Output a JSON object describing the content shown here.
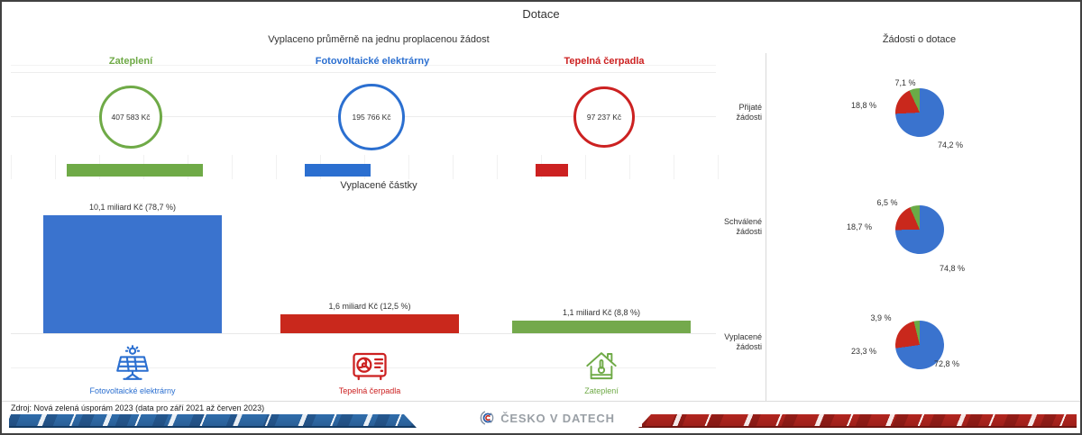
{
  "header": {
    "title": "Dotace"
  },
  "avg_chart": {
    "title": "Vyplaceno průměrně na jednu proplacenou žádost",
    "items": [
      {
        "label": "Zateplení",
        "value_text": "407 583 Kč",
        "value": 407583,
        "color": "#6FAA47"
      },
      {
        "label": "Fotovoltaické elektrárny",
        "value_text": "195 766 Kč",
        "value": 195766,
        "color": "#2B6FD0"
      },
      {
        "label": "Tepelná čerpadla",
        "value_text": "97 237 Kč",
        "value": 97237,
        "color": "#CC2121"
      }
    ]
  },
  "amounts_chart": {
    "title": "Vyplacené částky",
    "bars": [
      {
        "category": "Fotovoltaické elektrárny",
        "label": "10,1 miliard Kč (78,7 %)",
        "value": 10.1,
        "color": "#3A73CE"
      },
      {
        "category": "Tepelná čerpadla",
        "label": "1,6 miliard Kč (12,5 %)",
        "value": 1.6,
        "color": "#C9281C"
      },
      {
        "category": "Zateplení",
        "label": "1,1 miliard Kč (8,8 %)",
        "value": 1.1,
        "color": "#74A94C"
      }
    ]
  },
  "legend": {
    "items": [
      {
        "label": "Fotovoltaické elektrárny",
        "icon": "solar-panel-icon",
        "color": "#2B6FD0"
      },
      {
        "label": "Tepelná čerpadla",
        "icon": "heat-pump-icon",
        "color": "#CC2121"
      },
      {
        "label": "Zateplení",
        "icon": "insulated-house-icon",
        "color": "#6FAA47"
      }
    ]
  },
  "pies_chart": {
    "title": "Žádosti o dotace",
    "colors": {
      "blue": "#3A73CE",
      "red": "#C9281C",
      "green": "#6AAB47"
    },
    "rows": [
      {
        "label": "Přijaté\nžádosti",
        "values": [
          74.2,
          18.8,
          7.1
        ],
        "labels": {
          "green": "7,1 %",
          "red": "18,8 %",
          "blue": "74,2 %"
        }
      },
      {
        "label": "Schválené\nžádosti",
        "values": [
          74.8,
          18.7,
          6.5
        ],
        "labels": {
          "green": "6,5 %",
          "red": "18,7 %",
          "blue": "74,8 %"
        }
      },
      {
        "label": "Vyplacené\nžádosti",
        "values": [
          72.8,
          23.3,
          3.9
        ],
        "labels": {
          "green": "3,9 %",
          "red": "23,3 %",
          "blue": "72,8 %"
        }
      }
    ]
  },
  "footer": {
    "source": "Zdroj: Nová zelená úsporám 2023 (data pro září 2021 až červen 2023)",
    "logo_text": "ČESKO V DATECH"
  },
  "chart_data": [
    {
      "type": "bar",
      "title": "Vyplaceno průměrně na jednu proplacenou žádost",
      "categories": [
        "Zateplení",
        "Fotovoltaické elektrárny",
        "Tepelná čerpadla"
      ],
      "values": [
        407583,
        195766,
        97237
      ],
      "unit": "Kč",
      "notes": "shown as outlined circles with value inside plus proportional mini bars"
    },
    {
      "type": "bar",
      "title": "Vyplacené částky",
      "categories": [
        "Fotovoltaické elektrárny",
        "Tepelná čerpadla",
        "Zateplení"
      ],
      "values": [
        10.1,
        1.6,
        1.1
      ],
      "percent": [
        78.7,
        12.5,
        8.8
      ],
      "unit": "miliard Kč"
    },
    {
      "type": "pie",
      "title": "Žádosti o dotace – Přijaté žádosti",
      "labels": [
        "Fotovoltaické elektrárny",
        "Tepelná čerpadla",
        "Zateplení"
      ],
      "values": [
        74.2,
        18.8,
        7.1
      ]
    },
    {
      "type": "pie",
      "title": "Žádosti o dotace – Schválené žádosti",
      "labels": [
        "Fotovoltaické elektrárny",
        "Tepelná čerpadla",
        "Zateplení"
      ],
      "values": [
        74.8,
        18.7,
        6.5
      ]
    },
    {
      "type": "pie",
      "title": "Žádosti o dotace – Vyplacené žádosti",
      "labels": [
        "Fotovoltaické elektrárny",
        "Tepelná čerpadla",
        "Zateplení"
      ],
      "values": [
        72.8,
        23.3,
        3.9
      ]
    }
  ]
}
